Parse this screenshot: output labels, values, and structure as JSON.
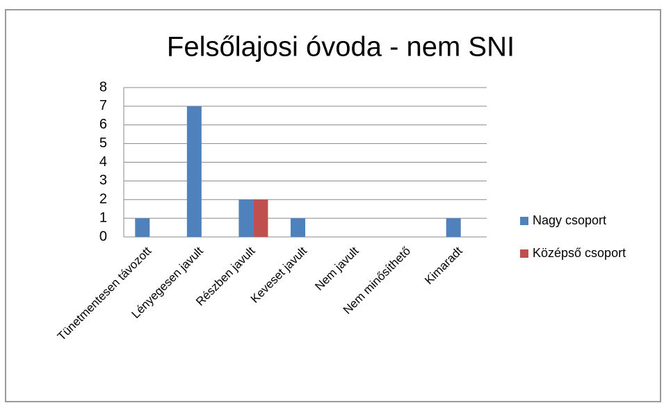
{
  "chart_data": {
    "type": "bar",
    "title": "Felsőlajosi óvoda - nem SNI",
    "categories": [
      "Tünetmentesen távozott",
      "Lényegesen javult",
      "Részben javult",
      "Keveset javult",
      "Nem javult",
      "Nem minősíthető",
      "Kimaradt"
    ],
    "series": [
      {
        "name": "Nagy csoport",
        "color": "#4f81bd",
        "values": [
          1,
          7,
          2,
          1,
          0,
          0,
          1
        ]
      },
      {
        "name": "Középső csoport",
        "color": "#c0504d",
        "values": [
          0,
          0,
          2,
          0,
          0,
          0,
          0
        ]
      }
    ],
    "ylim": [
      0,
      8
    ],
    "yticks": [
      0,
      1,
      2,
      3,
      4,
      5,
      6,
      7,
      8
    ],
    "grid": true,
    "legend": "right"
  }
}
